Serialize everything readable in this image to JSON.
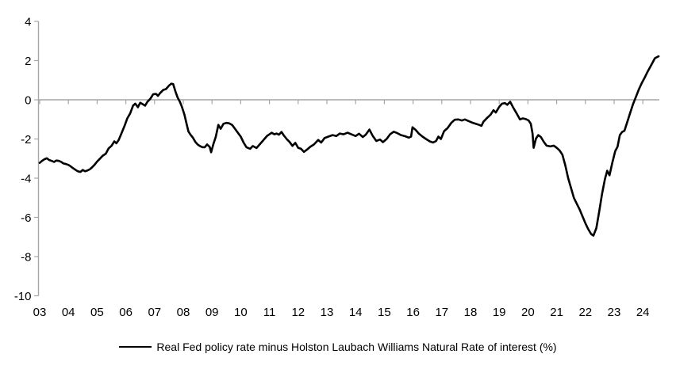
{
  "chart_data": {
    "type": "line",
    "legend": "Real Fed policy rate minus Holston Laubach Williams Natural Rate of interest (%)",
    "line_color": "#000000",
    "axis_color": "#a6a6a6",
    "text_color": "#000000",
    "background": "#ffffff",
    "ylim": [
      -10,
      4
    ],
    "yticks": [
      "4",
      "2",
      "0",
      "-2",
      "-4",
      "-6",
      "-8",
      "-10"
    ],
    "ytick_values": [
      4,
      2,
      0,
      -2,
      -4,
      -6,
      -8,
      -10
    ],
    "xtick_labels": [
      "03",
      "04",
      "05",
      "06",
      "07",
      "08",
      "09",
      "10",
      "11",
      "12",
      "13",
      "14",
      "15",
      "16",
      "17",
      "18",
      "19",
      "20",
      "21",
      "22",
      "23",
      "24"
    ],
    "xtick_years": [
      2003,
      2004,
      2005,
      2006,
      2007,
      2008,
      2009,
      2010,
      2011,
      2012,
      2013,
      2014,
      2015,
      2016,
      2017,
      2018,
      2019,
      2020,
      2021,
      2022,
      2023,
      2024
    ],
    "xlim": [
      2003.0,
      2024.6
    ],
    "grid": "zero-line-only",
    "legend_position": "bottom-center",
    "series": [
      {
        "name": "Real Fed policy rate minus Holston Laubach Williams Natural Rate of interest (%)",
        "points": [
          [
            2003.0,
            -3.22
          ],
          [
            2003.08,
            -3.12
          ],
          [
            2003.17,
            -3.03
          ],
          [
            2003.25,
            -2.98
          ],
          [
            2003.33,
            -3.07
          ],
          [
            2003.42,
            -3.12
          ],
          [
            2003.5,
            -3.17
          ],
          [
            2003.58,
            -3.1
          ],
          [
            2003.67,
            -3.12
          ],
          [
            2003.75,
            -3.17
          ],
          [
            2003.83,
            -3.25
          ],
          [
            2003.92,
            -3.28
          ],
          [
            2004.0,
            -3.32
          ],
          [
            2004.08,
            -3.4
          ],
          [
            2004.17,
            -3.5
          ],
          [
            2004.25,
            -3.58
          ],
          [
            2004.33,
            -3.65
          ],
          [
            2004.42,
            -3.68
          ],
          [
            2004.5,
            -3.58
          ],
          [
            2004.58,
            -3.65
          ],
          [
            2004.67,
            -3.6
          ],
          [
            2004.75,
            -3.54
          ],
          [
            2004.83,
            -3.44
          ],
          [
            2004.92,
            -3.3
          ],
          [
            2005.0,
            -3.15
          ],
          [
            2005.1,
            -3.0
          ],
          [
            2005.2,
            -2.85
          ],
          [
            2005.3,
            -2.75
          ],
          [
            2005.4,
            -2.48
          ],
          [
            2005.5,
            -2.35
          ],
          [
            2005.6,
            -2.12
          ],
          [
            2005.67,
            -2.22
          ],
          [
            2005.75,
            -2.05
          ],
          [
            2005.85,
            -1.7
          ],
          [
            2005.95,
            -1.35
          ],
          [
            2006.05,
            -0.95
          ],
          [
            2006.15,
            -0.7
          ],
          [
            2006.25,
            -0.3
          ],
          [
            2006.33,
            -0.2
          ],
          [
            2006.42,
            -0.38
          ],
          [
            2006.5,
            -0.15
          ],
          [
            2006.58,
            -0.22
          ],
          [
            2006.67,
            -0.3
          ],
          [
            2006.75,
            -0.1
          ],
          [
            2006.85,
            0.05
          ],
          [
            2006.95,
            0.28
          ],
          [
            2007.05,
            0.3
          ],
          [
            2007.12,
            0.2
          ],
          [
            2007.2,
            0.35
          ],
          [
            2007.3,
            0.5
          ],
          [
            2007.4,
            0.55
          ],
          [
            2007.5,
            0.72
          ],
          [
            2007.58,
            0.82
          ],
          [
            2007.65,
            0.8
          ],
          [
            2007.72,
            0.45
          ],
          [
            2007.8,
            0.12
          ],
          [
            2007.88,
            -0.1
          ],
          [
            2007.95,
            -0.35
          ],
          [
            2008.04,
            -0.75
          ],
          [
            2008.12,
            -1.25
          ],
          [
            2008.18,
            -1.62
          ],
          [
            2008.25,
            -1.78
          ],
          [
            2008.33,
            -1.92
          ],
          [
            2008.42,
            -2.15
          ],
          [
            2008.5,
            -2.28
          ],
          [
            2008.58,
            -2.36
          ],
          [
            2008.67,
            -2.42
          ],
          [
            2008.75,
            -2.42
          ],
          [
            2008.83,
            -2.28
          ],
          [
            2008.92,
            -2.4
          ],
          [
            2008.97,
            -2.68
          ],
          [
            2009.05,
            -2.25
          ],
          [
            2009.13,
            -1.9
          ],
          [
            2009.22,
            -1.28
          ],
          [
            2009.3,
            -1.48
          ],
          [
            2009.4,
            -1.22
          ],
          [
            2009.5,
            -1.18
          ],
          [
            2009.6,
            -1.2
          ],
          [
            2009.7,
            -1.28
          ],
          [
            2009.8,
            -1.48
          ],
          [
            2009.9,
            -1.68
          ],
          [
            2010.0,
            -1.88
          ],
          [
            2010.1,
            -2.18
          ],
          [
            2010.2,
            -2.42
          ],
          [
            2010.33,
            -2.5
          ],
          [
            2010.42,
            -2.36
          ],
          [
            2010.55,
            -2.46
          ],
          [
            2010.67,
            -2.26
          ],
          [
            2010.8,
            -2.04
          ],
          [
            2010.92,
            -1.84
          ],
          [
            2011.0,
            -1.76
          ],
          [
            2011.08,
            -1.68
          ],
          [
            2011.17,
            -1.76
          ],
          [
            2011.25,
            -1.72
          ],
          [
            2011.33,
            -1.78
          ],
          [
            2011.42,
            -1.64
          ],
          [
            2011.5,
            -1.82
          ],
          [
            2011.6,
            -2.0
          ],
          [
            2011.7,
            -2.15
          ],
          [
            2011.8,
            -2.35
          ],
          [
            2011.9,
            -2.2
          ],
          [
            2012.0,
            -2.45
          ],
          [
            2012.1,
            -2.5
          ],
          [
            2012.2,
            -2.66
          ],
          [
            2012.3,
            -2.55
          ],
          [
            2012.42,
            -2.4
          ],
          [
            2012.55,
            -2.28
          ],
          [
            2012.7,
            -2.05
          ],
          [
            2012.8,
            -2.18
          ],
          [
            2012.92,
            -1.95
          ],
          [
            2013.05,
            -1.88
          ],
          [
            2013.2,
            -1.8
          ],
          [
            2013.33,
            -1.85
          ],
          [
            2013.45,
            -1.72
          ],
          [
            2013.58,
            -1.76
          ],
          [
            2013.72,
            -1.68
          ],
          [
            2013.85,
            -1.76
          ],
          [
            2014.0,
            -1.85
          ],
          [
            2014.12,
            -1.73
          ],
          [
            2014.25,
            -1.9
          ],
          [
            2014.35,
            -1.78
          ],
          [
            2014.48,
            -1.52
          ],
          [
            2014.6,
            -1.85
          ],
          [
            2014.72,
            -2.1
          ],
          [
            2014.85,
            -2.03
          ],
          [
            2014.95,
            -2.16
          ],
          [
            2015.08,
            -2.0
          ],
          [
            2015.2,
            -1.76
          ],
          [
            2015.33,
            -1.63
          ],
          [
            2015.45,
            -1.7
          ],
          [
            2015.58,
            -1.8
          ],
          [
            2015.72,
            -1.86
          ],
          [
            2015.85,
            -1.93
          ],
          [
            2015.93,
            -1.88
          ],
          [
            2015.98,
            -1.4
          ],
          [
            2016.08,
            -1.52
          ],
          [
            2016.2,
            -1.72
          ],
          [
            2016.33,
            -1.88
          ],
          [
            2016.45,
            -2.0
          ],
          [
            2016.58,
            -2.12
          ],
          [
            2016.7,
            -2.18
          ],
          [
            2016.8,
            -2.1
          ],
          [
            2016.88,
            -1.88
          ],
          [
            2016.97,
            -2.0
          ],
          [
            2017.08,
            -1.6
          ],
          [
            2017.2,
            -1.45
          ],
          [
            2017.33,
            -1.18
          ],
          [
            2017.45,
            -1.02
          ],
          [
            2017.58,
            -1.0
          ],
          [
            2017.7,
            -1.06
          ],
          [
            2017.8,
            -1.0
          ],
          [
            2017.92,
            -1.08
          ],
          [
            2018.05,
            -1.16
          ],
          [
            2018.18,
            -1.22
          ],
          [
            2018.3,
            -1.28
          ],
          [
            2018.38,
            -1.33
          ],
          [
            2018.45,
            -1.12
          ],
          [
            2018.58,
            -0.92
          ],
          [
            2018.7,
            -0.76
          ],
          [
            2018.8,
            -0.53
          ],
          [
            2018.88,
            -0.65
          ],
          [
            2019.0,
            -0.36
          ],
          [
            2019.1,
            -0.2
          ],
          [
            2019.2,
            -0.17
          ],
          [
            2019.28,
            -0.26
          ],
          [
            2019.38,
            -0.1
          ],
          [
            2019.48,
            -0.38
          ],
          [
            2019.6,
            -0.68
          ],
          [
            2019.72,
            -1.0
          ],
          [
            2019.82,
            -0.95
          ],
          [
            2019.92,
            -0.98
          ],
          [
            2020.02,
            -1.05
          ],
          [
            2020.1,
            -1.22
          ],
          [
            2020.16,
            -1.72
          ],
          [
            2020.2,
            -2.45
          ],
          [
            2020.28,
            -1.98
          ],
          [
            2020.36,
            -1.8
          ],
          [
            2020.45,
            -1.9
          ],
          [
            2020.55,
            -2.14
          ],
          [
            2020.65,
            -2.34
          ],
          [
            2020.78,
            -2.38
          ],
          [
            2020.9,
            -2.34
          ],
          [
            2021.0,
            -2.45
          ],
          [
            2021.1,
            -2.58
          ],
          [
            2021.2,
            -2.8
          ],
          [
            2021.3,
            -3.35
          ],
          [
            2021.4,
            -4.0
          ],
          [
            2021.5,
            -4.5
          ],
          [
            2021.6,
            -5.0
          ],
          [
            2021.7,
            -5.3
          ],
          [
            2021.8,
            -5.6
          ],
          [
            2021.9,
            -5.95
          ],
          [
            2022.0,
            -6.3
          ],
          [
            2022.1,
            -6.6
          ],
          [
            2022.2,
            -6.85
          ],
          [
            2022.28,
            -6.93
          ],
          [
            2022.38,
            -6.55
          ],
          [
            2022.48,
            -5.7
          ],
          [
            2022.58,
            -4.8
          ],
          [
            2022.68,
            -4.05
          ],
          [
            2022.76,
            -3.62
          ],
          [
            2022.84,
            -3.85
          ],
          [
            2022.94,
            -3.2
          ],
          [
            2023.04,
            -2.62
          ],
          [
            2023.12,
            -2.4
          ],
          [
            2023.2,
            -1.8
          ],
          [
            2023.28,
            -1.64
          ],
          [
            2023.36,
            -1.58
          ],
          [
            2023.46,
            -1.12
          ],
          [
            2023.56,
            -0.66
          ],
          [
            2023.66,
            -0.22
          ],
          [
            2023.76,
            0.15
          ],
          [
            2023.86,
            0.52
          ],
          [
            2023.96,
            0.85
          ],
          [
            2024.06,
            1.12
          ],
          [
            2024.16,
            1.42
          ],
          [
            2024.26,
            1.68
          ],
          [
            2024.34,
            1.9
          ],
          [
            2024.42,
            2.12
          ],
          [
            2024.5,
            2.18
          ],
          [
            2024.55,
            2.22
          ]
        ]
      }
    ]
  }
}
